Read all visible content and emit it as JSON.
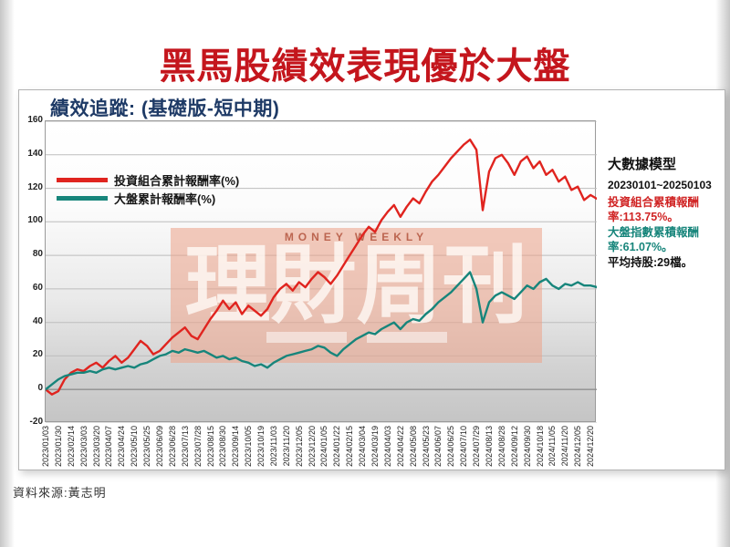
{
  "page": {
    "title": "黑馬股績效表現優於大盤",
    "source": "資料來源:黃志明"
  },
  "chart": {
    "title": "績效追蹤: (基礎版-短中期)",
    "watermark": {
      "top": "MONEY WEEKLY",
      "main": "理財周刊"
    },
    "panel": {
      "heading": "大數據模型",
      "period": "20230101~20250103",
      "portfolio_line": "投資組合累積報酬率:113.75%。",
      "market_line": "大盤指數累積報酬率:61.07%。",
      "holdings_line": "平均持股:29檔。"
    },
    "colors": {
      "title_red": "#c4161d",
      "chart_title_blue": "#1e3a66",
      "portfolio": "#e0241f",
      "market": "#17857b"
    }
  },
  "chart_data": {
    "type": "line",
    "title": "績效追蹤: (基礎版-短中期)",
    "xlabel": "",
    "ylabel": "",
    "ylim": [
      -20,
      160
    ],
    "yticks": [
      160,
      140,
      120,
      100,
      80,
      60,
      40,
      20,
      0,
      -20
    ],
    "grid": true,
    "legend_position": "top-left",
    "categories": [
      "2023/01/03",
      "2023/01/30",
      "2023/02/14",
      "2023/03/03",
      "2023/03/20",
      "2023/04/07",
      "2023/04/24",
      "2023/05/10",
      "2023/05/25",
      "2023/06/09",
      "2023/06/28",
      "2023/07/13",
      "2023/07/28",
      "2023/08/15",
      "2023/08/30",
      "2023/09/14",
      "2023/10/05",
      "2023/10/19",
      "2023/11/03",
      "2023/11/20",
      "2023/12/05",
      "2023/12/20",
      "2024/01/05",
      "2024/01/22",
      "2024/02/15",
      "2024/03/04",
      "2024/03/19",
      "2024/04/03",
      "2024/04/22",
      "2024/05/08",
      "2024/05/23",
      "2024/06/07",
      "2024/06/25",
      "2024/07/10",
      "2024/07/29",
      "2024/08/13",
      "2024/08/28",
      "2024/09/12",
      "2024/09/30",
      "2024/10/18",
      "2024/11/05",
      "2024/11/20",
      "2024/12/05",
      "2024/12/20"
    ],
    "points_per_category": 2,
    "series": [
      {
        "name": "投資組合累計報酬率(%)",
        "color": "#e0241f",
        "final_value": 113.75,
        "values": [
          0,
          -3,
          -1,
          6,
          10,
          12,
          11,
          14,
          16,
          13,
          17,
          20,
          16,
          19,
          24,
          29,
          26,
          21,
          23,
          27,
          31,
          34,
          37,
          32,
          30,
          36,
          42,
          47,
          53,
          48,
          52,
          45,
          50,
          47,
          44,
          48,
          55,
          60,
          63,
          59,
          64,
          61,
          66,
          70,
          67,
          63,
          68,
          74,
          80,
          86,
          92,
          97,
          94,
          101,
          106,
          110,
          103,
          109,
          114,
          111,
          118,
          124,
          128,
          133,
          138,
          142,
          146,
          149,
          143,
          107,
          130,
          138,
          140,
          135,
          128,
          136,
          139,
          132,
          136,
          128,
          131,
          124,
          127,
          119,
          121,
          113,
          116,
          113.75
        ]
      },
      {
        "name": "大盤累計報酬率(%)",
        "color": "#17857b",
        "final_value": 61.07,
        "values": [
          0,
          3,
          6,
          8,
          9,
          10,
          10,
          11,
          10,
          12,
          13,
          12,
          13,
          14,
          13,
          15,
          16,
          18,
          20,
          21,
          23,
          22,
          24,
          23,
          22,
          23,
          21,
          19,
          20,
          18,
          19,
          17,
          16,
          14,
          15,
          13,
          16,
          18,
          20,
          21,
          22,
          23,
          24,
          26,
          25,
          22,
          20,
          24,
          27,
          30,
          32,
          34,
          33,
          36,
          38,
          40,
          36,
          40,
          42,
          41,
          45,
          48,
          52,
          55,
          58,
          62,
          66,
          70,
          60,
          40,
          52,
          56,
          58,
          56,
          54,
          58,
          62,
          60,
          64,
          66,
          62,
          60,
          63,
          62,
          64,
          62,
          62,
          61.07
        ]
      }
    ]
  }
}
